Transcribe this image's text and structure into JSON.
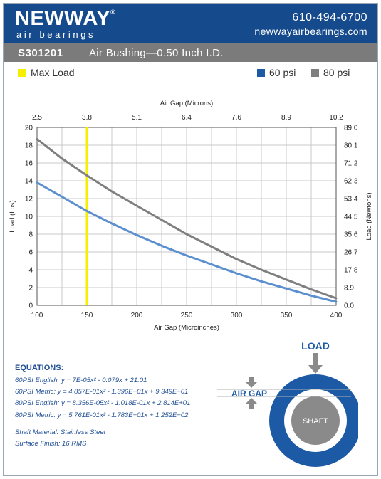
{
  "header": {
    "logo_main": "NEWWAY",
    "logo_reg": "®",
    "logo_sub": "air bearings",
    "phone": "610-494-6700",
    "website": "newwayairbearings.com"
  },
  "title": {
    "part_number": "S301201",
    "description": "Air Bushing—0.50 Inch I.D."
  },
  "legend": {
    "max_load": "Max Load",
    "psi60": "60 psi",
    "psi80": "80 psi"
  },
  "colors": {
    "brand_blue": "#154a8c",
    "series_60": "#5b8fcf",
    "series_80": "#7f7f7f",
    "max_load": "#f5ef00",
    "swatch_60": "#1d5aa6",
    "equation_text": "#1f4e94"
  },
  "chart_data": {
    "type": "line",
    "x_bottom": {
      "label": "Air Gap (Microinches)",
      "ticks": [
        100,
        150,
        200,
        250,
        300,
        350,
        400
      ],
      "range": [
        100,
        400
      ]
    },
    "x_top": {
      "label": "Air Gap (Microns)",
      "ticks": [
        "2.5",
        "3.8",
        "5.1",
        "6.4",
        "7.6",
        "8.9",
        "10.2"
      ]
    },
    "y_left": {
      "label": "Load (Lbs)",
      "ticks": [
        0,
        2,
        4,
        6,
        8,
        10,
        12,
        14,
        16,
        18,
        20
      ],
      "range": [
        0,
        20
      ]
    },
    "y_right": {
      "label": "Load (Newtons)",
      "ticks": [
        "0.0",
        "8.9",
        "17.8",
        "26.7",
        "35.6",
        "44.5",
        "53.4",
        "62.3",
        "71.2",
        "80.1",
        "89.0"
      ]
    },
    "grid": true,
    "max_load_x": 150,
    "series": [
      {
        "name": "60 psi",
        "color": "#5b8fcf",
        "x": [
          100,
          125,
          150,
          175,
          200,
          225,
          250,
          275,
          300,
          325,
          350,
          375,
          400
        ],
        "y": [
          13.8,
          12.2,
          10.6,
          9.2,
          7.9,
          6.7,
          5.6,
          4.6,
          3.6,
          2.7,
          1.9,
          1.1,
          0.4
        ]
      },
      {
        "name": "80 psi",
        "color": "#7f7f7f",
        "x": [
          100,
          125,
          150,
          175,
          200,
          225,
          250,
          275,
          300,
          325,
          350,
          375,
          400
        ],
        "y": [
          18.7,
          16.5,
          14.6,
          12.8,
          11.2,
          9.6,
          8.0,
          6.6,
          5.2,
          4.0,
          2.9,
          1.8,
          0.8
        ]
      }
    ]
  },
  "equations": {
    "title": "EQUATIONS:",
    "lines": [
      "60PSI English:  y = 7E-05x² - 0.079x + 21.01",
      "60PSI Metric:  y = 4.857E-01x² - 1.396E+01x + 9.349E+01",
      "80PSI English:  y = 8.356E-05x² - 1.018E-01x + 2.814E+01",
      "80PSI Metric:  y = 5.761E-01x² - 1.783E+01x + 1.252E+02"
    ]
  },
  "material": {
    "shaft": "Shaft Material:  Stainless Steel",
    "finish": "Surface Finish:  16 RMS"
  },
  "diagram": {
    "load_label": "LOAD",
    "air_gap_label": "AIR GAP",
    "shaft_label": "SHAFT"
  }
}
